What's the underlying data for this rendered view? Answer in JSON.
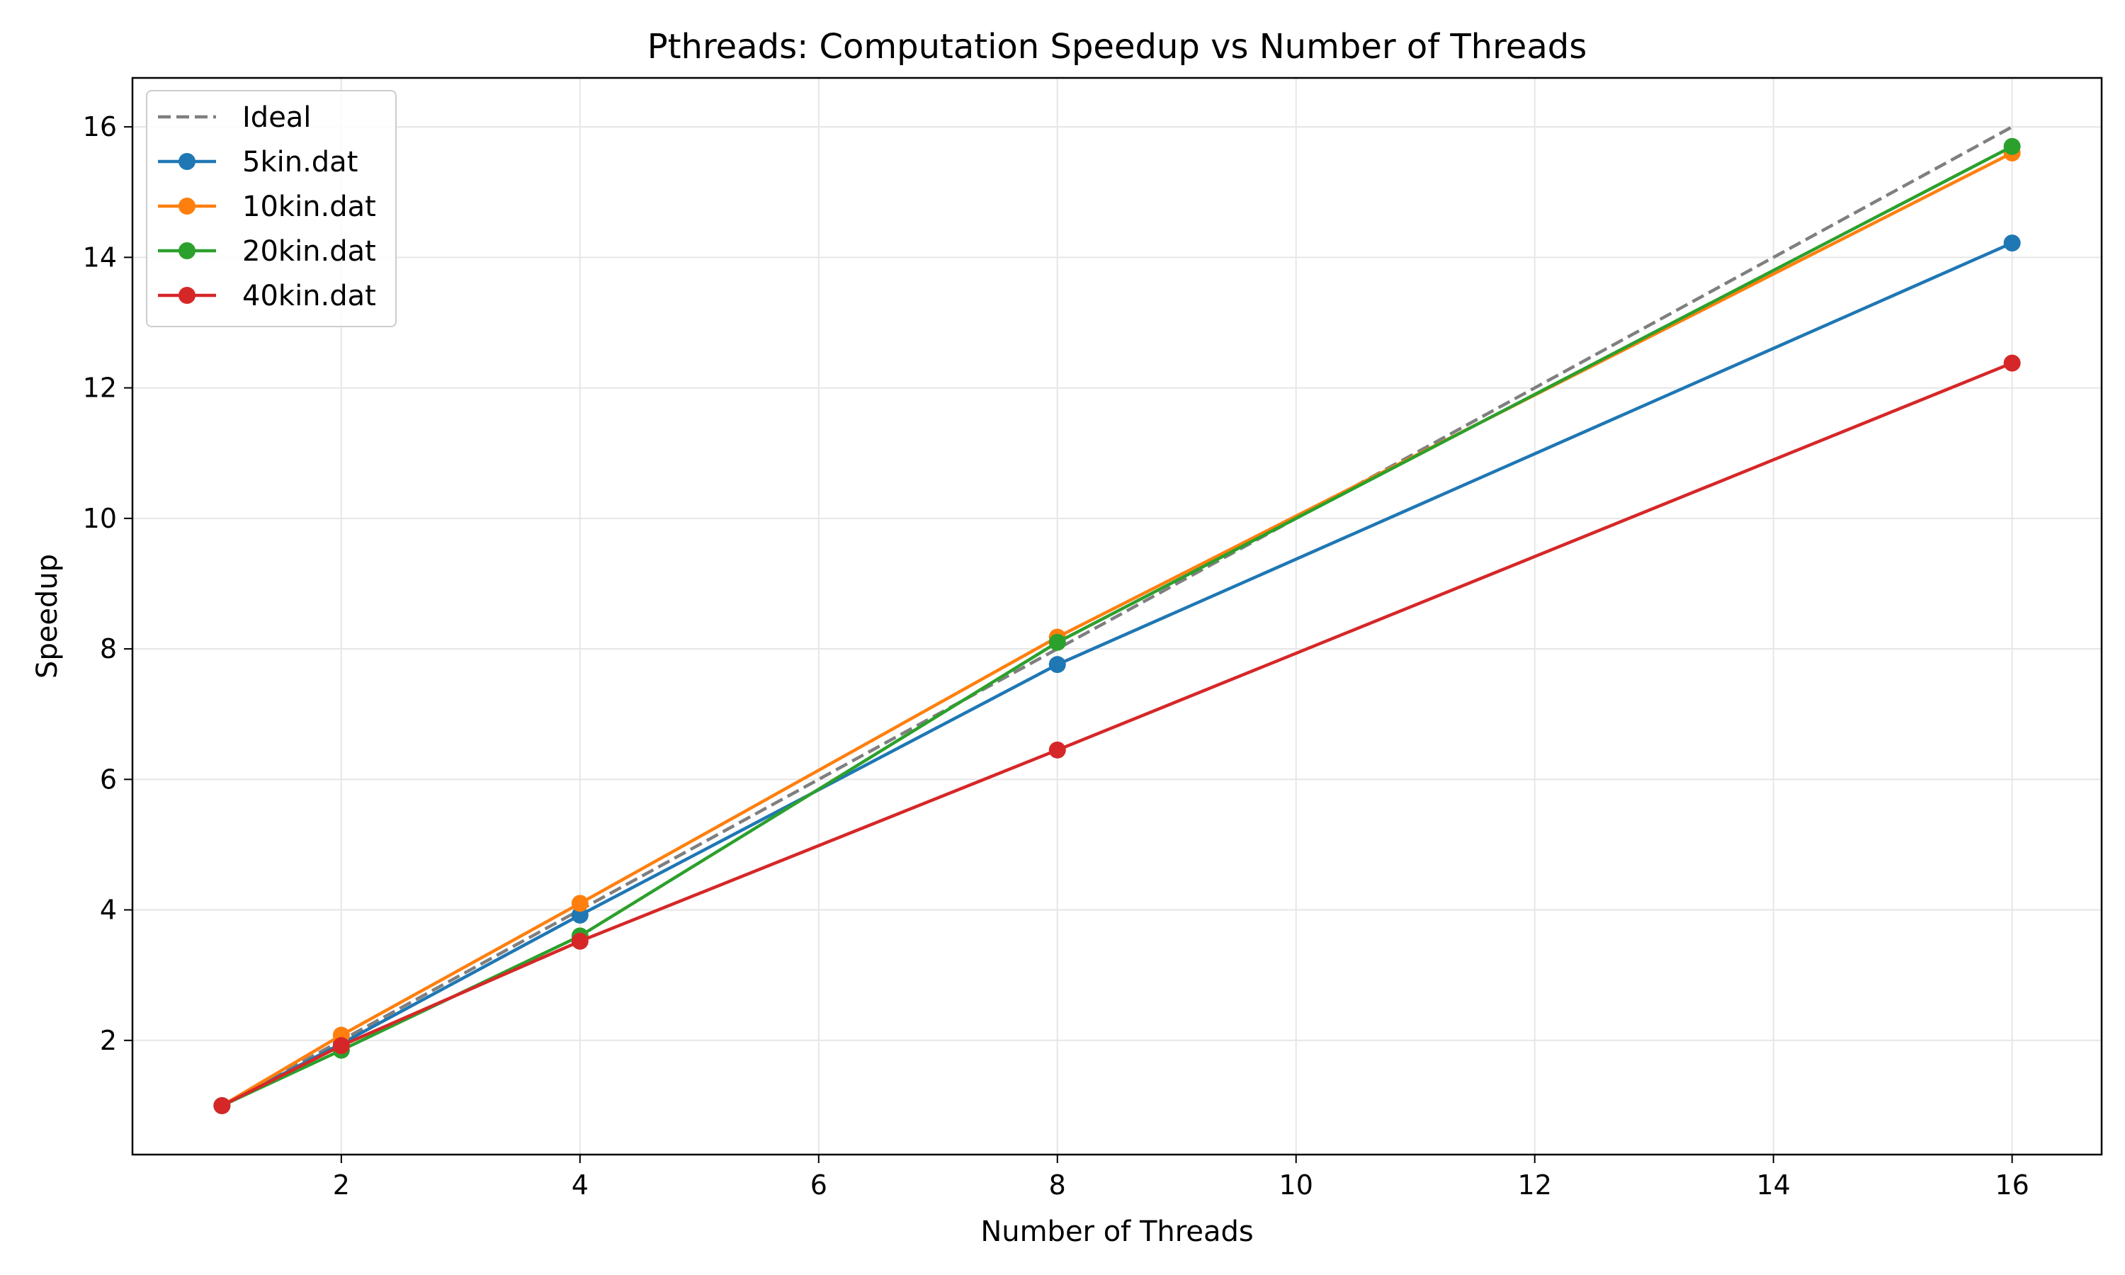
{
  "chart_data": {
    "type": "line",
    "title": "Pthreads: Computation Speedup vs Number of Threads",
    "xlabel": "Number of Threads",
    "ylabel": "Speedup",
    "x": [
      1,
      2,
      4,
      8,
      16
    ],
    "xlim": [
      0.25,
      16.75
    ],
    "ylim": [
      0.25,
      16.75
    ],
    "xticks": [
      2,
      4,
      6,
      8,
      10,
      12,
      14,
      16
    ],
    "yticks": [
      2,
      4,
      6,
      8,
      10,
      12,
      14,
      16
    ],
    "grid": true,
    "legend_position": "top-left",
    "series": [
      {
        "name": "Ideal",
        "values": [
          1,
          2,
          4,
          8,
          16
        ],
        "color": "#7f7f7f",
        "style": "dashed",
        "markers": false
      },
      {
        "name": "5kin.dat",
        "values": [
          1,
          1.95,
          3.92,
          7.76,
          14.22
        ],
        "color": "#1f77b4",
        "style": "solid",
        "markers": true
      },
      {
        "name": "10kin.dat",
        "values": [
          1,
          2.08,
          4.1,
          8.18,
          15.6
        ],
        "color": "#ff7f0e",
        "style": "solid",
        "markers": true
      },
      {
        "name": "20kin.dat",
        "values": [
          1,
          1.85,
          3.6,
          8.1,
          15.7
        ],
        "color": "#2ca02c",
        "style": "solid",
        "markers": true
      },
      {
        "name": "40kin.dat",
        "values": [
          1,
          1.92,
          3.52,
          6.45,
          12.38
        ],
        "color": "#d62728",
        "style": "solid",
        "markers": true
      }
    ]
  }
}
